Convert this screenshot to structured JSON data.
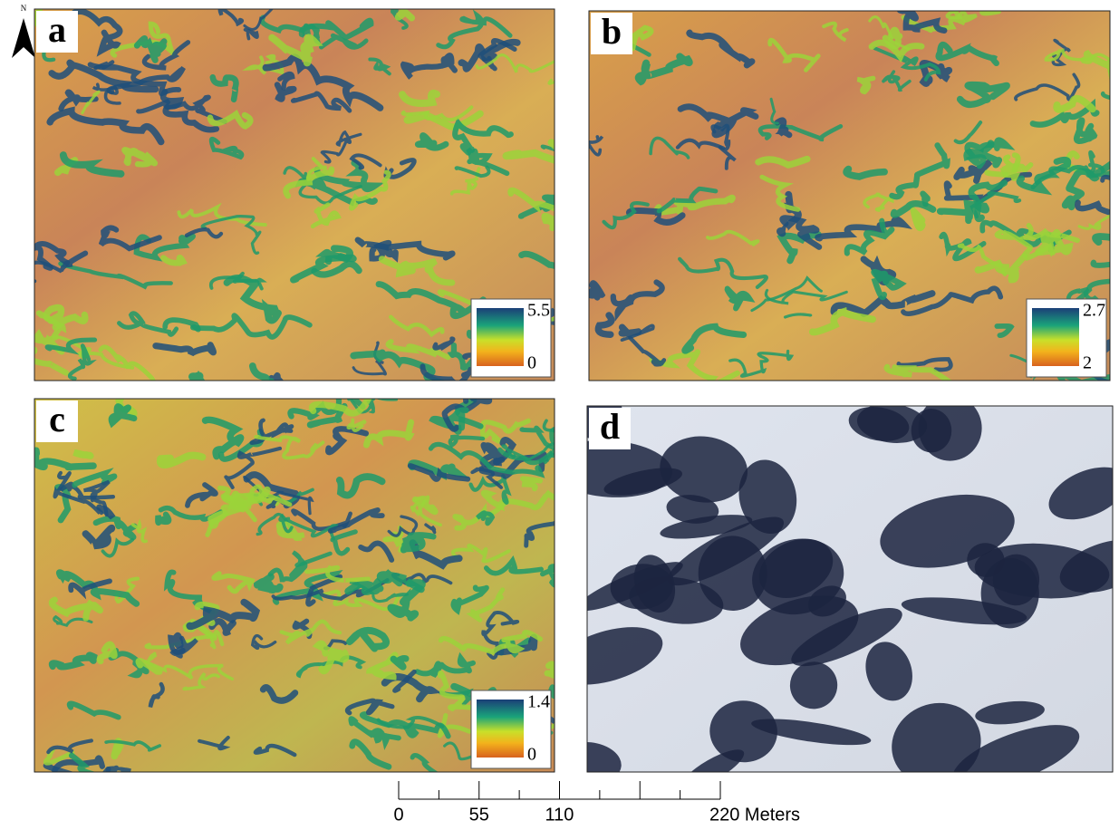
{
  "north_arrow": {
    "label": "N"
  },
  "panels": [
    {
      "label": "a",
      "legend": {
        "max": "5.5",
        "min": "0"
      }
    },
    {
      "label": "b",
      "legend": {
        "max": "2.7",
        "min": "2"
      }
    },
    {
      "label": "c",
      "legend": {
        "max": "1.4",
        "min": "0"
      }
    },
    {
      "label": "d"
    }
  ],
  "scale_bar": {
    "labels": [
      "0",
      "55",
      "110",
      "220 Meters"
    ]
  }
}
